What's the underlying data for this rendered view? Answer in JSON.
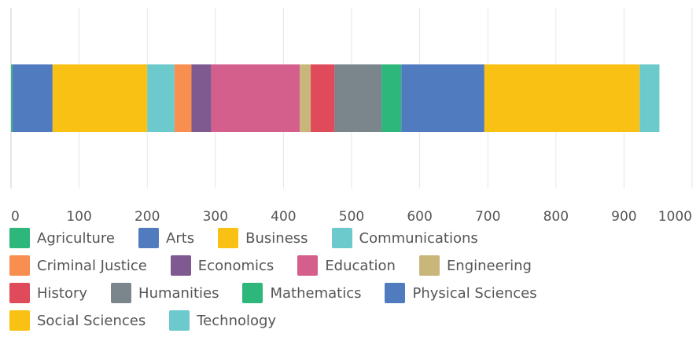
{
  "chart_data": {
    "type": "bar",
    "orientation": "horizontal",
    "stacked": true,
    "categories": [
      null
    ],
    "series": [
      {
        "name": "Agriculture",
        "color": "#2db77a",
        "values": [
          2
        ]
      },
      {
        "name": "Arts",
        "color": "#507cbf",
        "values": [
          59
        ]
      },
      {
        "name": "Business",
        "color": "#f9c113",
        "values": [
          139
        ]
      },
      {
        "name": "Communications",
        "color": "#6ccacd",
        "values": [
          40
        ]
      },
      {
        "name": "Criminal Justice",
        "color": "#f88e4f",
        "values": [
          25
        ]
      },
      {
        "name": "Economics",
        "color": "#7f5a91",
        "values": [
          29
        ]
      },
      {
        "name": "Education",
        "color": "#d45f8d",
        "values": [
          130
        ]
      },
      {
        "name": "Engineering",
        "color": "#c8b67b",
        "values": [
          16
        ]
      },
      {
        "name": "History",
        "color": "#e04b5b",
        "values": [
          35
        ]
      },
      {
        "name": "Humanities",
        "color": "#7b868c",
        "values": [
          69
        ]
      },
      {
        "name": "Mathematics",
        "color": "#2db77a",
        "values": [
          29
        ]
      },
      {
        "name": "Physical Sciences",
        "color": "#507cbf",
        "values": [
          122
        ]
      },
      {
        "name": "Social Sciences",
        "color": "#f9c113",
        "values": [
          228
        ]
      },
      {
        "name": "Technology",
        "color": "#6ccacd",
        "values": [
          29
        ]
      }
    ],
    "xlim": [
      0,
      1000
    ],
    "xticks": [
      0,
      100,
      200,
      300,
      400,
      500,
      600,
      700,
      800,
      900,
      1000
    ],
    "grid": true,
    "legend": "bottom"
  }
}
